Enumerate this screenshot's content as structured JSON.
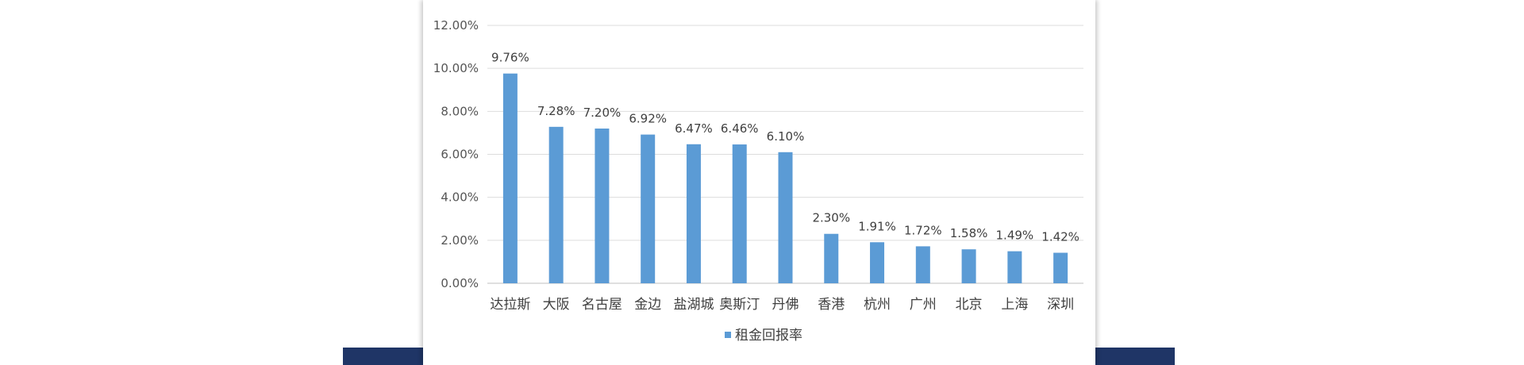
{
  "chart_data": {
    "type": "bar",
    "categories": [
      "达拉斯",
      "大阪",
      "名古屋",
      "金边",
      "盐湖城",
      "奥斯汀",
      "丹佛",
      "香港",
      "杭州",
      "广州",
      "北京",
      "上海",
      "深圳"
    ],
    "series": [
      {
        "name": "租金回报率",
        "values": [
          9.76,
          7.28,
          7.2,
          6.92,
          6.47,
          6.46,
          6.1,
          2.3,
          1.91,
          1.72,
          1.58,
          1.49,
          1.42
        ],
        "labels": [
          "9.76%",
          "7.28%",
          "7.20%",
          "6.92%",
          "6.47%",
          "6.46%",
          "6.10%",
          "2.30%",
          "1.91%",
          "1.72%",
          "1.58%",
          "1.49%",
          "1.42%"
        ]
      }
    ],
    "y_ticks": [
      0,
      2,
      4,
      6,
      8,
      10,
      12
    ],
    "y_tick_labels": [
      "0.00%",
      "2.00%",
      "4.00%",
      "6.00%",
      "8.00%",
      "10.00%",
      "12.00%"
    ],
    "ylim": [
      0,
      12
    ],
    "grid": true,
    "legend": "bottom",
    "bar_color": "#5b9bd5",
    "title": "",
    "xlabel": "",
    "ylabel": ""
  }
}
